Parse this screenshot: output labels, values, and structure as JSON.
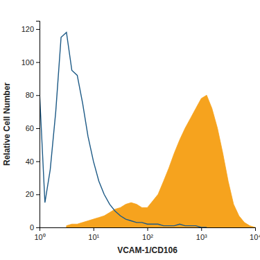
{
  "chart_data": {
    "type": "area",
    "x_label": "VCAM-1/CD106",
    "y_label": "Relative Cell Number",
    "log": "x",
    "xlim": [
      1,
      10000
    ],
    "xticks": [
      {
        "value": 1,
        "label": "10⁰"
      },
      {
        "value": 10,
        "label": "10¹"
      },
      {
        "value": 100,
        "label": "10²"
      },
      {
        "value": 1000,
        "label": "10³"
      },
      {
        "value": 10000,
        "label": "10⁴"
      }
    ],
    "ylim": [
      0,
      125
    ],
    "yticks": [
      0,
      20,
      40,
      60,
      80,
      100,
      120
    ],
    "x": [
      1,
      1.26,
      1.58,
      2,
      2.51,
      3.16,
      3.98,
      5.01,
      6.31,
      7.94,
      10,
      12.6,
      15.8,
      20,
      25.1,
      31.6,
      39.8,
      50.1,
      63.1,
      79.4,
      100,
      126,
      158,
      200,
      251,
      316,
      398,
      501,
      631,
      794,
      1000,
      1260,
      1580,
      2000,
      2510,
      3160,
      3980,
      5010,
      6310,
      7940,
      10000
    ],
    "series": [
      {
        "type": "area",
        "color": "#f6a31e",
        "values": [
          null,
          null,
          null,
          null,
          null,
          1,
          2,
          2,
          3,
          4,
          5,
          6,
          7,
          9,
          11,
          12,
          14,
          15,
          14,
          12,
          12,
          16,
          20,
          28,
          36,
          45,
          53,
          60,
          66,
          72,
          78,
          80,
          72,
          60,
          45,
          28,
          14,
          7,
          3,
          1,
          0
        ]
      },
      {
        "type": "line",
        "color": "#1d5a86",
        "values": [
          82,
          15,
          35,
          70,
          115,
          118,
          95,
          92,
          75,
          55,
          40,
          28,
          20,
          14,
          10,
          7,
          5,
          4,
          3,
          3,
          2,
          2,
          2,
          1,
          1,
          1,
          2,
          1,
          1,
          1,
          0,
          0,
          null,
          null,
          null,
          null,
          null,
          null,
          null,
          null,
          null
        ]
      }
    ]
  }
}
